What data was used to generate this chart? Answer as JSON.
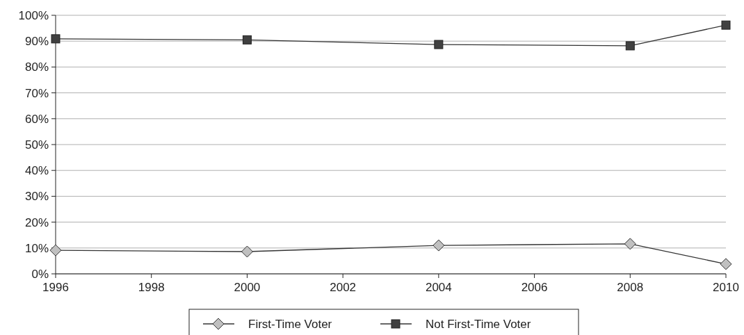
{
  "chart_data": {
    "type": "line",
    "x": [
      1996,
      2000,
      2004,
      2008,
      2010
    ],
    "series": [
      {
        "name": "First-Time Voter",
        "color": "#c0c0c0",
        "marker": "diamond",
        "values": [
          9.1,
          8.6,
          11.0,
          11.6,
          3.8
        ]
      },
      {
        "name": "Not First-Time Voter",
        "color": "#404040",
        "marker": "square",
        "values": [
          90.9,
          90.5,
          88.7,
          88.2,
          96.2
        ]
      }
    ],
    "xlim": [
      1996,
      2010
    ],
    "xticks": [
      1996,
      1998,
      2000,
      2002,
      2004,
      2006,
      2008,
      2010
    ],
    "ylim": [
      0,
      100
    ],
    "yticks": [
      {
        "value": 0,
        "label": "0%"
      },
      {
        "value": 10,
        "label": "10%"
      },
      {
        "value": 20,
        "label": "20%"
      },
      {
        "value": 30,
        "label": "30%"
      },
      {
        "value": 40,
        "label": "40%"
      },
      {
        "value": 50,
        "label": "50%"
      },
      {
        "value": 60,
        "label": "60%"
      },
      {
        "value": 70,
        "label": "70%"
      },
      {
        "value": 80,
        "label": "80%"
      },
      {
        "value": 90,
        "label": "90%"
      },
      {
        "value": 100,
        "label": "100%"
      }
    ],
    "grid": "y",
    "legend": "bottom",
    "line_style": "solid"
  }
}
